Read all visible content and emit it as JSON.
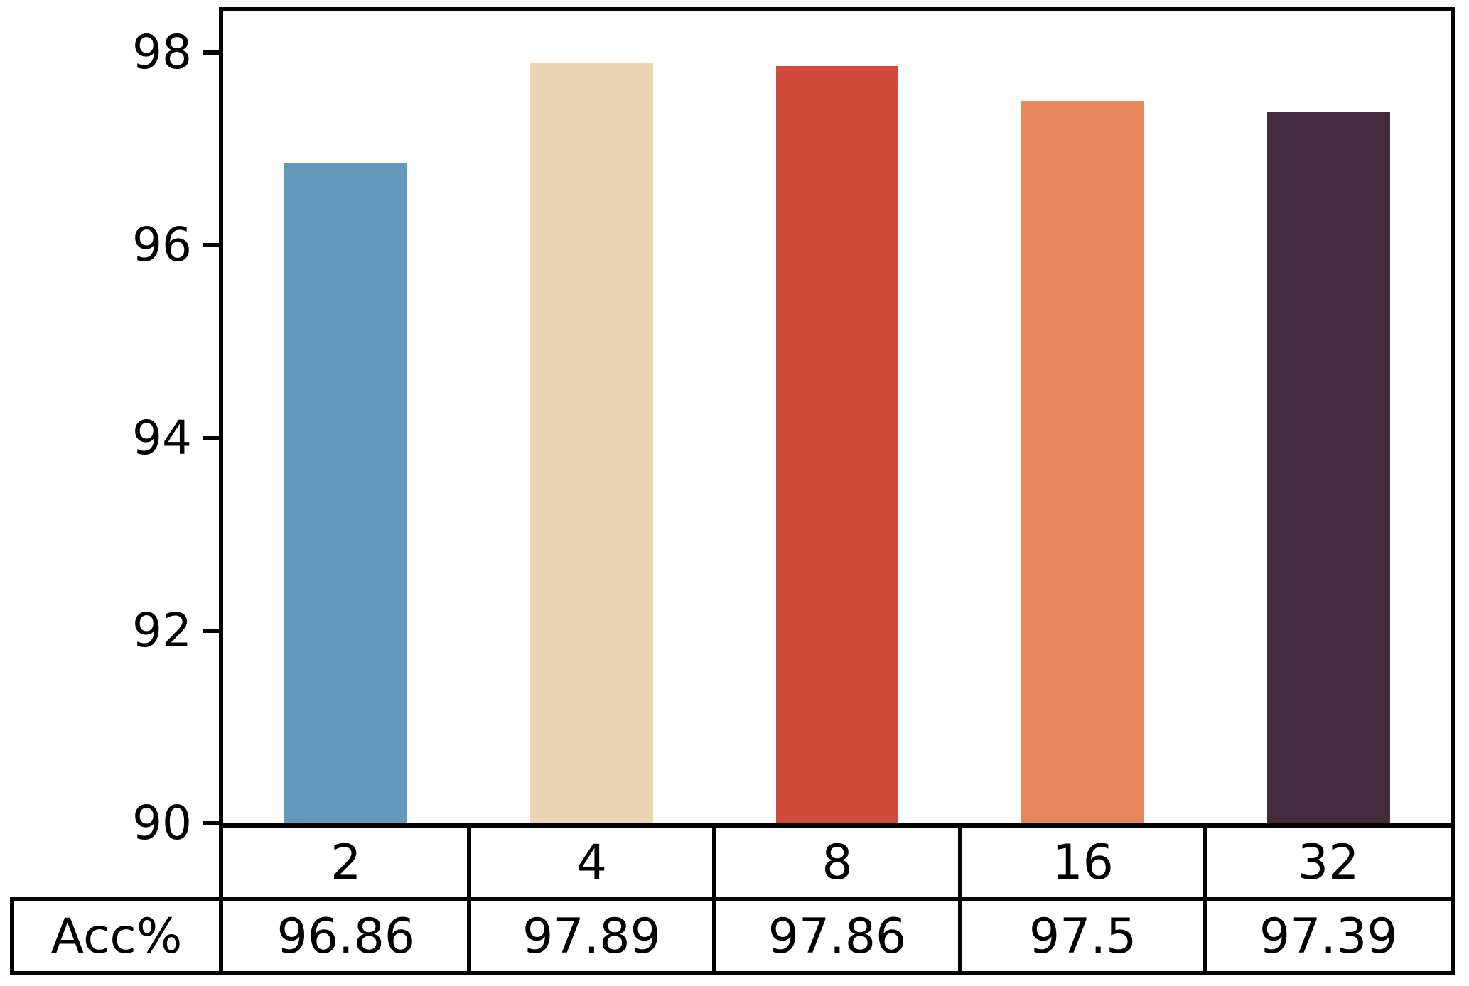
{
  "chart_data": {
    "type": "bar",
    "title": "",
    "xlabel": "",
    "ylabel": "",
    "categories": [
      "2",
      "4",
      "8",
      "16",
      "32"
    ],
    "series": [
      {
        "name": "Acc%",
        "values": [
          96.86,
          97.89,
          97.86,
          97.5,
          97.39
        ]
      }
    ],
    "bar_colors": [
      "#6399BA",
      "#ECD5B4",
      "#D14B3B",
      "#E6875D",
      "#432A3D"
    ],
    "ylim": [
      90,
      98.43
    ],
    "yticks": [
      90,
      92,
      94,
      96,
      98
    ],
    "ytick_labels": [
      "90",
      "92",
      "94",
      "96",
      "98"
    ],
    "grid": false,
    "legend": "none",
    "axis_color": "#000000",
    "text_color": "#000000",
    "background": "#ffffff",
    "table": {
      "row_header": "Acc%",
      "column_labels": [
        "2",
        "4",
        "8",
        "16",
        "32"
      ],
      "values": [
        "96.86",
        "97.89",
        "97.86",
        "97.5",
        "97.39"
      ]
    }
  }
}
